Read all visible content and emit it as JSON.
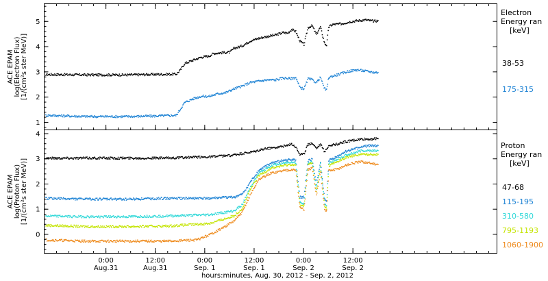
{
  "x_axis": {
    "title": "hours:minutes, Aug. 30, 2012 - Sep. 2, 2012",
    "range_hours": [
      -15,
      95
    ],
    "ticks": [
      {
        "hour": 0,
        "time": "0:00",
        "date": "Aug.31"
      },
      {
        "hour": 12,
        "time": "12:00",
        "date": "Aug.31"
      },
      {
        "hour": 24,
        "time": "0:00",
        "date": "Sep. 1"
      },
      {
        "hour": 36,
        "time": "12:00",
        "date": "Sep. 1"
      },
      {
        "hour": 48,
        "time": "0:00",
        "date": "Sep. 2"
      },
      {
        "hour": 60,
        "time": "12:00",
        "date": "Sep. 2"
      }
    ]
  },
  "chart_data": [
    {
      "type": "scatter",
      "panel": "electron",
      "ylabel": [
        "ACE EPAM",
        "log(Electron Flux)",
        "[1/(cm²s ster MeV)]"
      ],
      "ylim": [
        0.7,
        5.7
      ],
      "yticks": [
        1,
        2,
        3,
        4,
        5
      ],
      "legend_title": [
        "Electron",
        "Energy ran",
        "[keV]"
      ],
      "series": [
        {
          "name": "38-53",
          "color": "#000000",
          "points": [
            [
              -15,
              2.92
            ],
            [
              -5,
              2.9
            ],
            [
              5,
              2.9
            ],
            [
              12,
              2.92
            ],
            [
              17,
              2.93
            ],
            [
              18,
              3.1
            ],
            [
              19,
              3.35
            ],
            [
              21,
              3.48
            ],
            [
              23,
              3.6
            ],
            [
              25,
              3.65
            ],
            [
              26,
              3.75
            ],
            [
              28,
              3.78
            ],
            [
              30,
              3.8
            ],
            [
              31,
              3.95
            ],
            [
              33,
              4.05
            ],
            [
              35,
              4.25
            ],
            [
              37,
              4.35
            ],
            [
              39,
              4.42
            ],
            [
              41,
              4.48
            ],
            [
              43,
              4.58
            ],
            [
              44,
              4.55
            ],
            [
              45,
              4.7
            ],
            [
              46,
              4.62
            ],
            [
              47,
              4.25
            ],
            [
              48,
              4.1
            ],
            [
              49,
              4.78
            ],
            [
              50,
              4.85
            ],
            [
              51,
              4.5
            ],
            [
              52,
              4.8
            ],
            [
              53,
              4.15
            ],
            [
              53.5,
              4.08
            ],
            [
              54,
              4.8
            ],
            [
              55,
              4.9
            ],
            [
              57,
              4.92
            ],
            [
              59,
              5.0
            ],
            [
              61,
              5.05
            ],
            [
              63,
              5.08
            ],
            [
              65,
              5.03
            ],
            [
              66,
              5.05
            ]
          ]
        },
        {
          "name": "175-315",
          "color": "#1c82d4",
          "points": [
            [
              -15,
              1.3
            ],
            [
              -5,
              1.25
            ],
            [
              5,
              1.25
            ],
            [
              12,
              1.27
            ],
            [
              17,
              1.3
            ],
            [
              18,
              1.55
            ],
            [
              19,
              1.8
            ],
            [
              21,
              1.95
            ],
            [
              23,
              2.05
            ],
            [
              25,
              2.05
            ],
            [
              27,
              2.15
            ],
            [
              29,
              2.2
            ],
            [
              31,
              2.35
            ],
            [
              33,
              2.45
            ],
            [
              35,
              2.6
            ],
            [
              37,
              2.65
            ],
            [
              39,
              2.7
            ],
            [
              41,
              2.7
            ],
            [
              43,
              2.78
            ],
            [
              45,
              2.75
            ],
            [
              46,
              2.8
            ],
            [
              47,
              2.4
            ],
            [
              48,
              2.35
            ],
            [
              49,
              2.75
            ],
            [
              50,
              2.7
            ],
            [
              51,
              2.6
            ],
            [
              52,
              2.8
            ],
            [
              53,
              2.35
            ],
            [
              53.5,
              2.3
            ],
            [
              54,
              2.8
            ],
            [
              55,
              2.85
            ],
            [
              57,
              2.95
            ],
            [
              59,
              3.05
            ],
            [
              61,
              3.1
            ],
            [
              63,
              3.05
            ],
            [
              65,
              3.0
            ],
            [
              66,
              3.0
            ]
          ]
        }
      ]
    },
    {
      "type": "scatter",
      "panel": "proton",
      "ylabel": [
        "ACE EPAM",
        "log(Proton Flux)",
        "[1/(cm²s ster MeV)]"
      ],
      "ylim": [
        -0.75,
        4.15
      ],
      "yticks": [
        0,
        1,
        2,
        3,
        4
      ],
      "legend_title": [
        "Proton",
        "Energy ran",
        "[keV]"
      ],
      "series": [
        {
          "name": "47-68",
          "color": "#000000",
          "points": [
            [
              -15,
              3.05
            ],
            [
              -5,
              3.05
            ],
            [
              5,
              3.05
            ],
            [
              15,
              3.05
            ],
            [
              25,
              3.1
            ],
            [
              30,
              3.15
            ],
            [
              34,
              3.25
            ],
            [
              36,
              3.3
            ],
            [
              38,
              3.4
            ],
            [
              40,
              3.45
            ],
            [
              42,
              3.5
            ],
            [
              44,
              3.55
            ],
            [
              45,
              3.62
            ],
            [
              46,
              3.5
            ],
            [
              47,
              3.2
            ],
            [
              48,
              3.2
            ],
            [
              49,
              3.6
            ],
            [
              50,
              3.65
            ],
            [
              51,
              3.45
            ],
            [
              52,
              3.6
            ],
            [
              53,
              3.3
            ],
            [
              54,
              3.55
            ],
            [
              56,
              3.6
            ],
            [
              58,
              3.7
            ],
            [
              60,
              3.75
            ],
            [
              62,
              3.8
            ],
            [
              64,
              3.8
            ],
            [
              66,
              3.82
            ]
          ]
        },
        {
          "name": "115-195",
          "color": "#1c82d4",
          "points": [
            [
              -15,
              1.45
            ],
            [
              -5,
              1.42
            ],
            [
              5,
              1.42
            ],
            [
              15,
              1.45
            ],
            [
              25,
              1.45
            ],
            [
              31,
              1.5
            ],
            [
              33,
              1.6
            ],
            [
              35,
              2.1
            ],
            [
              37,
              2.55
            ],
            [
              40,
              2.85
            ],
            [
              43,
              2.95
            ],
            [
              45,
              3.0
            ],
            [
              46,
              2.95
            ],
            [
              47,
              1.5
            ],
            [
              48,
              1.5
            ],
            [
              49,
              2.95
            ],
            [
              50,
              3.0
            ],
            [
              51,
              2.0
            ],
            [
              52,
              2.9
            ],
            [
              53,
              1.4
            ],
            [
              53.5,
              1.3
            ],
            [
              54,
              2.95
            ],
            [
              56,
              3.1
            ],
            [
              58,
              3.3
            ],
            [
              60,
              3.4
            ],
            [
              62,
              3.5
            ],
            [
              64,
              3.55
            ],
            [
              66,
              3.55
            ]
          ]
        },
        {
          "name": "310-580",
          "color": "#2ed8d8",
          "points": [
            [
              -15,
              0.75
            ],
            [
              -5,
              0.72
            ],
            [
              5,
              0.72
            ],
            [
              15,
              0.75
            ],
            [
              25,
              0.8
            ],
            [
              31,
              0.95
            ],
            [
              33,
              1.2
            ],
            [
              35,
              1.9
            ],
            [
              37,
              2.45
            ],
            [
              40,
              2.75
            ],
            [
              43,
              2.85
            ],
            [
              45,
              2.9
            ],
            [
              46,
              2.85
            ],
            [
              47,
              1.3
            ],
            [
              48,
              1.25
            ],
            [
              49,
              2.85
            ],
            [
              50,
              2.9
            ],
            [
              51,
              1.8
            ],
            [
              52,
              2.8
            ],
            [
              53,
              1.25
            ],
            [
              53.5,
              1.15
            ],
            [
              54,
              2.85
            ],
            [
              56,
              3.0
            ],
            [
              58,
              3.15
            ],
            [
              60,
              3.25
            ],
            [
              62,
              3.35
            ],
            [
              64,
              3.35
            ],
            [
              66,
              3.35
            ]
          ]
        },
        {
          "name": "795-1193",
          "color": "#c4e400",
          "points": [
            [
              -15,
              0.38
            ],
            [
              -5,
              0.33
            ],
            [
              5,
              0.33
            ],
            [
              15,
              0.35
            ],
            [
              25,
              0.45
            ],
            [
              31,
              0.75
            ],
            [
              33,
              1.05
            ],
            [
              35,
              1.8
            ],
            [
              37,
              2.35
            ],
            [
              40,
              2.65
            ],
            [
              43,
              2.75
            ],
            [
              45,
              2.8
            ],
            [
              46,
              2.75
            ],
            [
              47,
              1.2
            ],
            [
              48,
              1.15
            ],
            [
              49,
              2.8
            ],
            [
              50,
              2.85
            ],
            [
              51,
              1.7
            ],
            [
              52,
              2.7
            ],
            [
              53,
              1.15
            ],
            [
              53.5,
              1.05
            ],
            [
              54,
              2.75
            ],
            [
              56,
              2.9
            ],
            [
              58,
              3.05
            ],
            [
              60,
              3.15
            ],
            [
              62,
              3.2
            ],
            [
              64,
              3.2
            ],
            [
              66,
              3.2
            ]
          ]
        },
        {
          "name": "1060-1900",
          "color": "#ee8a1c",
          "points": [
            [
              -15,
              -0.2
            ],
            [
              -5,
              -0.25
            ],
            [
              5,
              -0.25
            ],
            [
              15,
              -0.25
            ],
            [
              22,
              -0.2
            ],
            [
              25,
              0.0
            ],
            [
              28,
              0.25
            ],
            [
              31,
              0.55
            ],
            [
              33,
              0.9
            ],
            [
              35,
              1.6
            ],
            [
              37,
              2.2
            ],
            [
              40,
              2.45
            ],
            [
              43,
              2.55
            ],
            [
              45,
              2.6
            ],
            [
              46,
              2.55
            ],
            [
              47,
              1.1
            ],
            [
              48,
              1.0
            ],
            [
              49,
              2.6
            ],
            [
              50,
              2.65
            ],
            [
              51,
              1.55
            ],
            [
              52,
              2.5
            ],
            [
              53,
              1.0
            ],
            [
              53.5,
              0.95
            ],
            [
              54,
              2.55
            ],
            [
              56,
              2.6
            ],
            [
              58,
              2.75
            ],
            [
              60,
              2.85
            ],
            [
              62,
              2.9
            ],
            [
              64,
              2.85
            ],
            [
              66,
              2.8
            ]
          ]
        }
      ]
    }
  ]
}
